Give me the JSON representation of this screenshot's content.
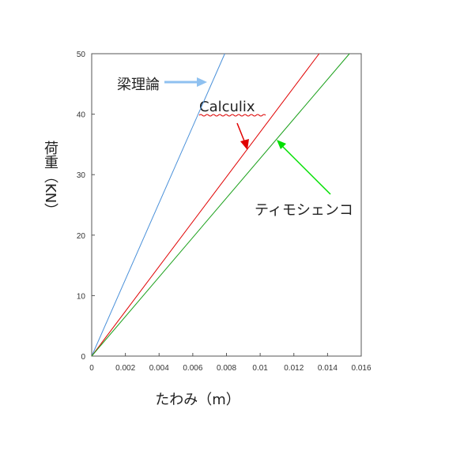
{
  "chart_data": {
    "type": "line",
    "x_label": "たわみ（m）",
    "y_label": "荷重（KN）",
    "xlim": [
      0,
      0.016
    ],
    "xticks": [
      0,
      0.002,
      0.004,
      0.006,
      0.008,
      0.01,
      0.012,
      0.014,
      0.016
    ],
    "ylim": [
      0,
      50
    ],
    "yticks": [
      0,
      10,
      20,
      30,
      40,
      50
    ],
    "series": [
      {
        "name": "梁理論",
        "color": "#4a90d9",
        "x": [
          0,
          0.0079
        ],
        "values": [
          0,
          50
        ]
      },
      {
        "name": "Calculix",
        "color": "#e00000",
        "x": [
          0,
          0.0135
        ],
        "values": [
          0,
          50
        ]
      },
      {
        "name": "ティモシェンコ",
        "color": "#1aa01a",
        "x": [
          0,
          0.0153
        ],
        "values": [
          0,
          50
        ]
      }
    ]
  }
}
